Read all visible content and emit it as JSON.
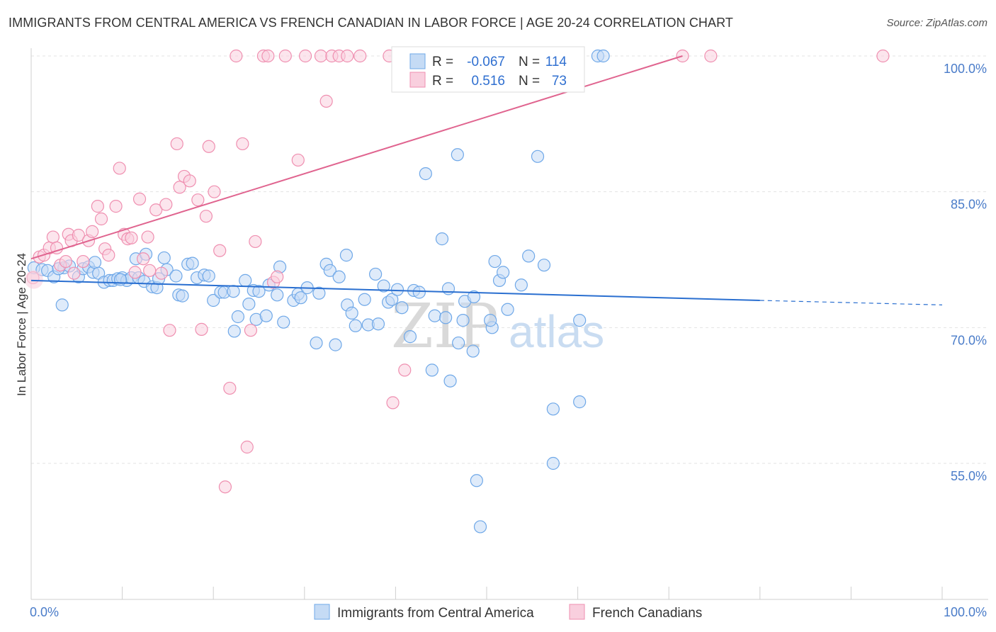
{
  "title": "IMMIGRANTS FROM CENTRAL AMERICA VS FRENCH CANADIAN IN LABOR FORCE | AGE 20-24 CORRELATION CHART",
  "source": "Source: ZipAtlas.com",
  "watermark": {
    "zip": "ZIP",
    "atlas": "atlas"
  },
  "colors": {
    "blue": "#6fa8e8",
    "blue_fill": "#c5dbf5",
    "blue_line": "#2a6fd0",
    "pink": "#ef8fb0",
    "pink_fill": "#f9cfde",
    "pink_line": "#e0648f",
    "tick": "#4a7cc9"
  },
  "chart_data": {
    "type": "scatter",
    "title": "IMMIGRANTS FROM CENTRAL AMERICA VS FRENCH CANADIAN IN LABOR FORCE | AGE 20-24 CORRELATION CHART",
    "ylabel": "In Labor Force | Age 20-24",
    "xlim": [
      0,
      100
    ],
    "ylim": [
      40,
      101.5
    ],
    "x_ticks": [
      "0.0%",
      "100.0%"
    ],
    "y_ticks": [
      {
        "value": 55,
        "label": "55.0%"
      },
      {
        "value": 70,
        "label": "70.0%"
      },
      {
        "value": 85,
        "label": "85.0%"
      },
      {
        "value": 100,
        "label": "100.0%"
      }
    ],
    "grid": true,
    "legend": {
      "position": "top-center",
      "entries": [
        {
          "r_label": "R =",
          "r": "-0.067",
          "n_label": "N =",
          "n": "114"
        },
        {
          "r_label": "R =",
          "r": "0.516",
          "n_label": "N =",
          "n": "73"
        }
      ]
    },
    "bottom_legend": [
      "Immigrants from Central America",
      "French Canadians"
    ],
    "series": [
      {
        "name": "Immigrants from Central America",
        "color": "#6fa8e8",
        "trend": {
          "x": [
            0,
            80
          ],
          "y": [
            75.2,
            73.0
          ],
          "dashed_to": [
            100,
            72.5
          ]
        },
        "points": [
          [
            0.3,
            76.6
          ],
          [
            1.2,
            76.4
          ],
          [
            1.8,
            76.3
          ],
          [
            2.5,
            75.6
          ],
          [
            3.4,
            72.5
          ],
          [
            3.6,
            76.6
          ],
          [
            4.2,
            76.8
          ],
          [
            5.2,
            75.6
          ],
          [
            5.7,
            76.5
          ],
          [
            6.3,
            76.7
          ],
          [
            6.8,
            76.1
          ],
          [
            7.0,
            77.2
          ],
          [
            7.4,
            76.0
          ],
          [
            8.0,
            75.0
          ],
          [
            8.6,
            75.2
          ],
          [
            9.0,
            75.2
          ],
          [
            9.5,
            75.4
          ],
          [
            10.0,
            75.5
          ],
          [
            10.5,
            75.2
          ],
          [
            11.0,
            75.5
          ],
          [
            11.5,
            77.6
          ],
          [
            11.8,
            75.5
          ],
          [
            12.4,
            75.1
          ],
          [
            12.6,
            78.1
          ],
          [
            13.3,
            74.5
          ],
          [
            13.8,
            74.4
          ],
          [
            14.6,
            77.7
          ],
          [
            14.9,
            76.4
          ],
          [
            15.9,
            75.7
          ],
          [
            16.2,
            73.6
          ],
          [
            16.6,
            73.5
          ],
          [
            17.2,
            77.0
          ],
          [
            17.7,
            77.1
          ],
          [
            18.2,
            75.5
          ],
          [
            19.0,
            75.8
          ],
          [
            19.5,
            75.7
          ],
          [
            20.0,
            73.0
          ],
          [
            20.8,
            73.9
          ],
          [
            21.2,
            73.9
          ],
          [
            22.2,
            74.0
          ],
          [
            22.3,
            69.6
          ],
          [
            22.7,
            71.2
          ],
          [
            23.5,
            75.2
          ],
          [
            23.9,
            72.6
          ],
          [
            24.4,
            74.1
          ],
          [
            24.7,
            70.9
          ],
          [
            25.0,
            74.0
          ],
          [
            25.8,
            71.3
          ],
          [
            26.1,
            74.7
          ],
          [
            27.0,
            73.6
          ],
          [
            27.3,
            76.7
          ],
          [
            27.7,
            70.6
          ],
          [
            28.8,
            73.0
          ],
          [
            29.3,
            73.7
          ],
          [
            29.6,
            73.3
          ],
          [
            30.3,
            74.4
          ],
          [
            31.3,
            68.3
          ],
          [
            31.6,
            73.8
          ],
          [
            32.4,
            77.0
          ],
          [
            32.8,
            76.3
          ],
          [
            33.4,
            68.1
          ],
          [
            33.8,
            75.6
          ],
          [
            34.6,
            78.0
          ],
          [
            34.7,
            72.5
          ],
          [
            35.2,
            71.6
          ],
          [
            35.6,
            70.2
          ],
          [
            36.6,
            73.1
          ],
          [
            37.0,
            70.3
          ],
          [
            37.8,
            75.9
          ],
          [
            38.1,
            70.4
          ],
          [
            38.7,
            74.6
          ],
          [
            39.2,
            72.8
          ],
          [
            39.6,
            73.1
          ],
          [
            40.2,
            74.2
          ],
          [
            40.7,
            72.2
          ],
          [
            41.6,
            69.0
          ],
          [
            42.0,
            74.1
          ],
          [
            42.6,
            73.9
          ],
          [
            43.3,
            87.0
          ],
          [
            44.0,
            65.3
          ],
          [
            44.3,
            71.3
          ],
          [
            45.1,
            79.8
          ],
          [
            45.5,
            71.1
          ],
          [
            45.8,
            74.3
          ],
          [
            46.0,
            64.1
          ],
          [
            46.8,
            89.1
          ],
          [
            46.9,
            68.3
          ],
          [
            47.4,
            70.8
          ],
          [
            47.6,
            72.9
          ],
          [
            48.5,
            67.4
          ],
          [
            48.6,
            73.4
          ],
          [
            50.6,
            70.0
          ],
          [
            48.9,
            53.1
          ],
          [
            49.3,
            48.0
          ],
          [
            50.4,
            70.8
          ],
          [
            50.9,
            77.3
          ],
          [
            51.4,
            75.2
          ],
          [
            51.8,
            76.1
          ],
          [
            52.3,
            72.0
          ],
          [
            53.8,
            74.7
          ],
          [
            54.6,
            77.9
          ],
          [
            55.6,
            88.9
          ],
          [
            56.3,
            76.9
          ],
          [
            57.3,
            61.0
          ],
          [
            57.3,
            55.0
          ],
          [
            60.2,
            61.8
          ],
          [
            60.2,
            70.8
          ],
          [
            62.2,
            100
          ],
          [
            62.8,
            100
          ],
          [
            50,
            100
          ],
          [
            52,
            100
          ],
          [
            3.0,
            76.5
          ],
          [
            9.8,
            75.3
          ],
          [
            14.0,
            75.4
          ]
        ]
      },
      {
        "name": "French Canadians",
        "color": "#ef8fb0",
        "trend": {
          "x": [
            0,
            71.5
          ],
          "y": [
            77.6,
            100
          ]
        },
        "points": [
          [
            0.2,
            75.5
          ],
          [
            0.9,
            77.8
          ],
          [
            1.4,
            78.0
          ],
          [
            2.0,
            78.8
          ],
          [
            2.4,
            80.0
          ],
          [
            2.8,
            78.8
          ],
          [
            3.2,
            76.9
          ],
          [
            3.8,
            77.3
          ],
          [
            4.1,
            80.3
          ],
          [
            4.4,
            79.6
          ],
          [
            4.7,
            76.0
          ],
          [
            5.2,
            80.2
          ],
          [
            5.7,
            77.3
          ],
          [
            6.3,
            79.6
          ],
          [
            6.7,
            80.6
          ],
          [
            7.3,
            83.4
          ],
          [
            7.7,
            82.0
          ],
          [
            8.1,
            78.7
          ],
          [
            8.5,
            78.0
          ],
          [
            9.3,
            83.4
          ],
          [
            9.7,
            87.6
          ],
          [
            10.2,
            80.3
          ],
          [
            10.6,
            79.8
          ],
          [
            11.0,
            79.9
          ],
          [
            11.4,
            76.1
          ],
          [
            11.9,
            84.2
          ],
          [
            12.3,
            77.6
          ],
          [
            12.8,
            80.0
          ],
          [
            13.0,
            76.3
          ],
          [
            13.7,
            83.0
          ],
          [
            14.3,
            76.0
          ],
          [
            14.8,
            83.6
          ],
          [
            15.2,
            69.7
          ],
          [
            16.0,
            90.3
          ],
          [
            16.3,
            85.5
          ],
          [
            16.8,
            86.7
          ],
          [
            17.4,
            86.2
          ],
          [
            18.3,
            84.1
          ],
          [
            18.7,
            69.8
          ],
          [
            19.2,
            82.3
          ],
          [
            19.5,
            90.0
          ],
          [
            20.1,
            85.0
          ],
          [
            20.7,
            78.5
          ],
          [
            21.3,
            52.4
          ],
          [
            21.8,
            63.3
          ],
          [
            22.5,
            100
          ],
          [
            23.2,
            90.3
          ],
          [
            23.7,
            56.8
          ],
          [
            24.1,
            69.7
          ],
          [
            24.6,
            79.5
          ],
          [
            25.5,
            100
          ],
          [
            26.0,
            100
          ],
          [
            26.6,
            75.0
          ],
          [
            27.0,
            75.6
          ],
          [
            27.9,
            100
          ],
          [
            29.3,
            88.5
          ],
          [
            30.1,
            100
          ],
          [
            31.8,
            100
          ],
          [
            32.4,
            95.0
          ],
          [
            33.0,
            100
          ],
          [
            33.8,
            100
          ],
          [
            34.7,
            100
          ],
          [
            36.1,
            100
          ],
          [
            39.3,
            100
          ],
          [
            39.7,
            61.7
          ],
          [
            41.0,
            65.3
          ],
          [
            46.5,
            100
          ],
          [
            50.3,
            100
          ],
          [
            51.2,
            100
          ],
          [
            55.2,
            100
          ],
          [
            71.5,
            100
          ],
          [
            74.6,
            100
          ],
          [
            93.5,
            100
          ]
        ]
      }
    ]
  }
}
